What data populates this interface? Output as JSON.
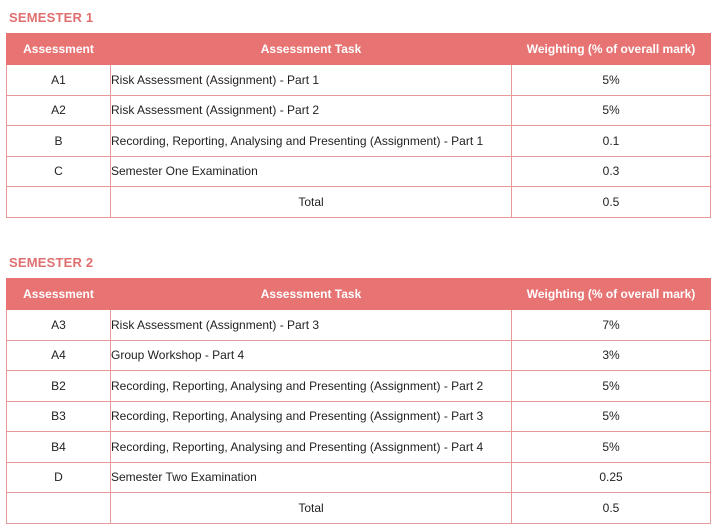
{
  "semester1": {
    "title": "SEMESTER 1",
    "headers": {
      "assessment": "Assessment",
      "task": "Assessment Task",
      "weighting": "Weighting (% of overall mark)"
    },
    "rows": [
      {
        "code": "A1",
        "task": "Risk Assessment (Assignment) - Part 1",
        "weight": "5%"
      },
      {
        "code": "A2",
        "task": "Risk Assessment (Assignment) - Part 2",
        "weight": "5%"
      },
      {
        "code": "B",
        "task": "Recording, Reporting, Analysing and Presenting (Assignment) - Part 1",
        "weight": "0.1"
      },
      {
        "code": "C",
        "task": "Semester One Examination",
        "weight": "0.3"
      }
    ],
    "total": {
      "label": "Total",
      "weight": "0.5"
    }
  },
  "semester2": {
    "title": "SEMESTER 2",
    "headers": {
      "assessment": "Assessment",
      "task": "Assessment Task",
      "weighting": "Weighting (% of overall mark)"
    },
    "rows": [
      {
        "code": "A3",
        "task": "Risk Assessment (Assignment) - Part 3",
        "weight": "7%"
      },
      {
        "code": "A4",
        "task": "Group Workshop - Part 4",
        "weight": "3%"
      },
      {
        "code": "B2",
        "task": "Recording, Reporting, Analysing and Presenting (Assignment) - Part 2",
        "weight": "5%"
      },
      {
        "code": "B3",
        "task": "Recording, Reporting, Analysing and Presenting (Assignment) - Part 3",
        "weight": "5%"
      },
      {
        "code": "B4",
        "task": "Recording, Reporting, Analysing and Presenting (Assignment) - Part 4",
        "weight": "5%"
      },
      {
        "code": "D",
        "task": "Semester Two Examination",
        "weight": "0.25"
      }
    ],
    "total": {
      "label": "Total",
      "weight": "0.5"
    }
  },
  "colors": {
    "accent": "#e87373",
    "title": "#e07070",
    "border": "#e89a9a"
  }
}
